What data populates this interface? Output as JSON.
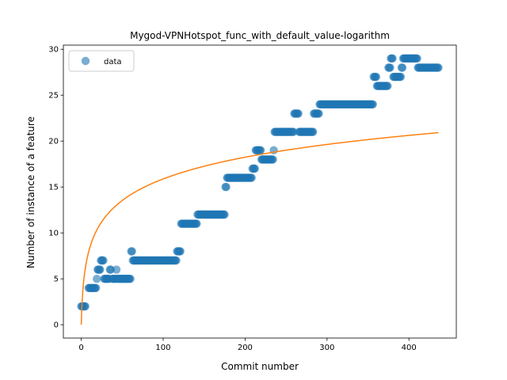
{
  "chart_data": {
    "type": "scatter",
    "title": "Mygod-VPNHotspot_func_with_default_value-logarithm",
    "xlabel": "Commit number",
    "ylabel": "Number of instance of a feature",
    "xlim": [
      -21.8,
      457.8
    ],
    "ylim": [
      -1.45,
      30.45
    ],
    "xticks": [
      0,
      100,
      200,
      300,
      400
    ],
    "yticks": [
      0,
      5,
      10,
      15,
      20,
      25,
      30
    ],
    "grid": false,
    "legend": {
      "position": "top-left",
      "entries": [
        "data"
      ]
    },
    "colors": {
      "data": "#1f77b4",
      "fit": "#ff7f0e"
    },
    "series": [
      {
        "name": "data",
        "kind": "scatter",
        "segments": [
          [
            0,
            5,
            2
          ],
          [
            9,
            18,
            4
          ],
          [
            19,
            19,
            5
          ],
          [
            20,
            23,
            6
          ],
          [
            24,
            27,
            7
          ],
          [
            28,
            34,
            5
          ],
          [
            35,
            36,
            6
          ],
          [
            38,
            42,
            5
          ],
          [
            43,
            43,
            6
          ],
          [
            44,
            60,
            5
          ],
          [
            61,
            62,
            8
          ],
          [
            63,
            116,
            7
          ],
          [
            117,
            121,
            8
          ],
          [
            122,
            141,
            11
          ],
          [
            142,
            175,
            12
          ],
          [
            176,
            177,
            15
          ],
          [
            178,
            208,
            16
          ],
          [
            209,
            212,
            17
          ],
          [
            213,
            219,
            19
          ],
          [
            220,
            234,
            18
          ],
          [
            235,
            235,
            19
          ],
          [
            236,
            259,
            21
          ],
          [
            260,
            265,
            23
          ],
          [
            266,
            283,
            21
          ],
          [
            284,
            290,
            23
          ],
          [
            291,
            333,
            24
          ],
          [
            334,
            356,
            24
          ],
          [
            357,
            360,
            27
          ],
          [
            361,
            374,
            26
          ],
          [
            375,
            377,
            28
          ],
          [
            378,
            380,
            29
          ],
          [
            381,
            390,
            27
          ],
          [
            391,
            392,
            28
          ],
          [
            393,
            410,
            29
          ],
          [
            411,
            436,
            28
          ]
        ]
      },
      {
        "name": "fit",
        "kind": "line",
        "formula": "a*ln(1+x)",
        "a": 3.44,
        "x_range": [
          0,
          436
        ]
      }
    ]
  }
}
